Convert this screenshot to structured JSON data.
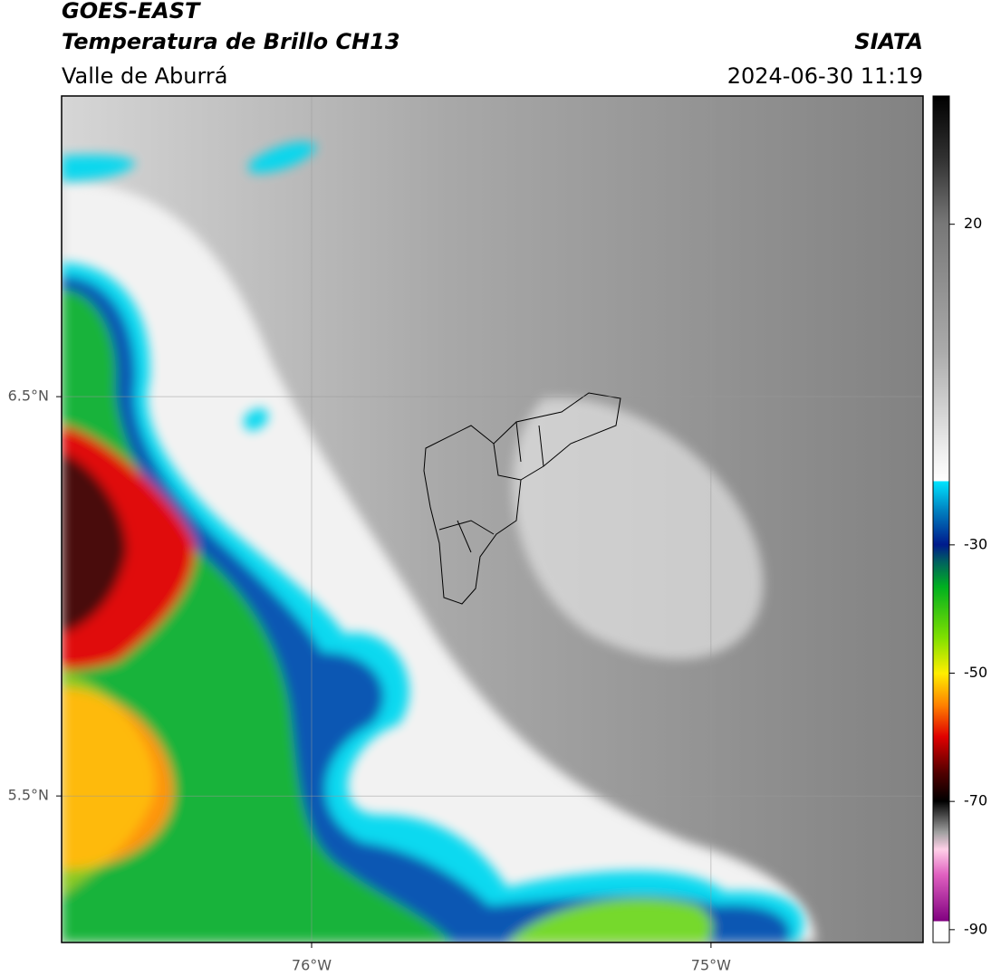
{
  "chart_data": {
    "type": "map",
    "title": "GOES-EAST",
    "subtitle": "Temperatura de Brillo CH13",
    "source": "SIATA",
    "region": "Valle de Aburrá",
    "timestamp": "2024-06-30 11:19",
    "xlim": [
      -76.626,
      -74.469
    ],
    "ylim": [
      5.133,
      7.253
    ],
    "xticks": [
      {
        "value": -76,
        "label": "76°W"
      },
      {
        "value": -75,
        "label": "75°W"
      }
    ],
    "yticks": [
      {
        "value": 5.5,
        "label": "5.5°N"
      },
      {
        "value": 6.5,
        "label": "6.5°N"
      }
    ],
    "colorbar": {
      "lim": [
        -92,
        40
      ],
      "ticks": [
        20,
        -30,
        -50,
        -70,
        -90
      ]
    },
    "grid": true
  }
}
